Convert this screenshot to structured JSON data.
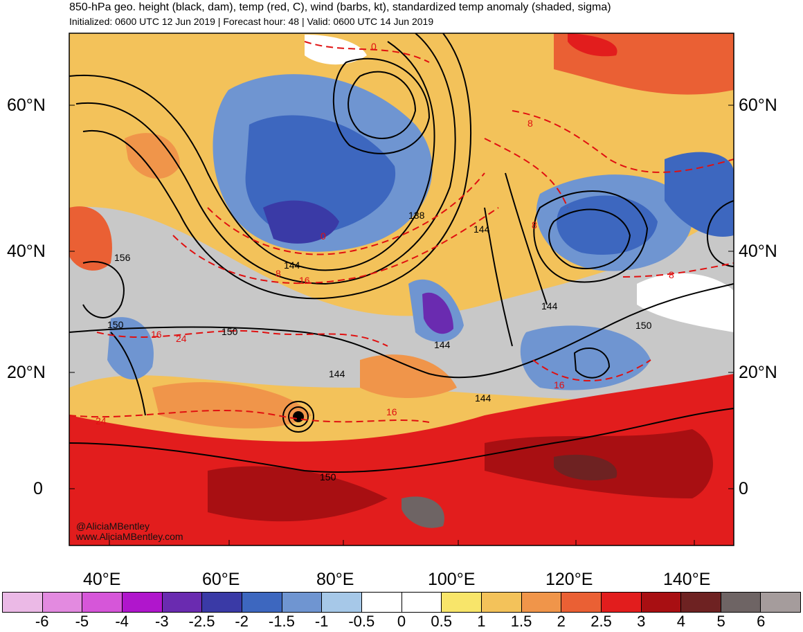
{
  "header": {
    "title": "850-hPa geo. height (black, dam), temp (red, C), wind (barbs, kt), standardized temp anomaly (shaded, sigma)",
    "subtitle": "Initialized: 0600 UTC 12 Jun 2019 | Forecast hour: 48 | Valid: 0600 UTC 14 Jun 2019"
  },
  "map": {
    "lat_labels": [
      "60°N",
      "40°N",
      "20°N",
      "0"
    ],
    "lon_labels": [
      "40°E",
      "60°E",
      "80°E",
      "100°E",
      "120°E",
      "140°E"
    ],
    "height_contour_labels": [
      "156",
      "150",
      "144",
      "138",
      "144",
      "144",
      "150",
      "144",
      "144",
      "150",
      "144",
      "150"
    ],
    "temp_contour_labels": [
      "0",
      "8",
      "16",
      "24",
      "16",
      "24",
      "16",
      "8",
      "8",
      "16",
      "8",
      "0"
    ],
    "credit_handle": "@AliciaMBentley",
    "credit_site": "www.AliciaMBentley.com"
  },
  "colorbar": {
    "labels": [
      "-6",
      "-5",
      "-4",
      "-3",
      "-2.5",
      "-2",
      "-1.5",
      "-1",
      "-0.5",
      "0",
      "0.5",
      "1",
      "1.5",
      "2",
      "2.5",
      "3",
      "4",
      "5",
      "6"
    ],
    "colors": [
      "#ebb9e6",
      "#e38ae0",
      "#d656d9",
      "#b016cc",
      "#6a2bb0",
      "#3a3aa6",
      "#3d67bf",
      "#6f95d1",
      "#a6c8e8",
      "#ffffff",
      "#ffffff",
      "#f8e56a",
      "#f3c25a",
      "#f0954a",
      "#ea6034",
      "#e21d1d",
      "#a80f12",
      "#6e2222",
      "#6e6464",
      "#a59c9c"
    ]
  }
}
